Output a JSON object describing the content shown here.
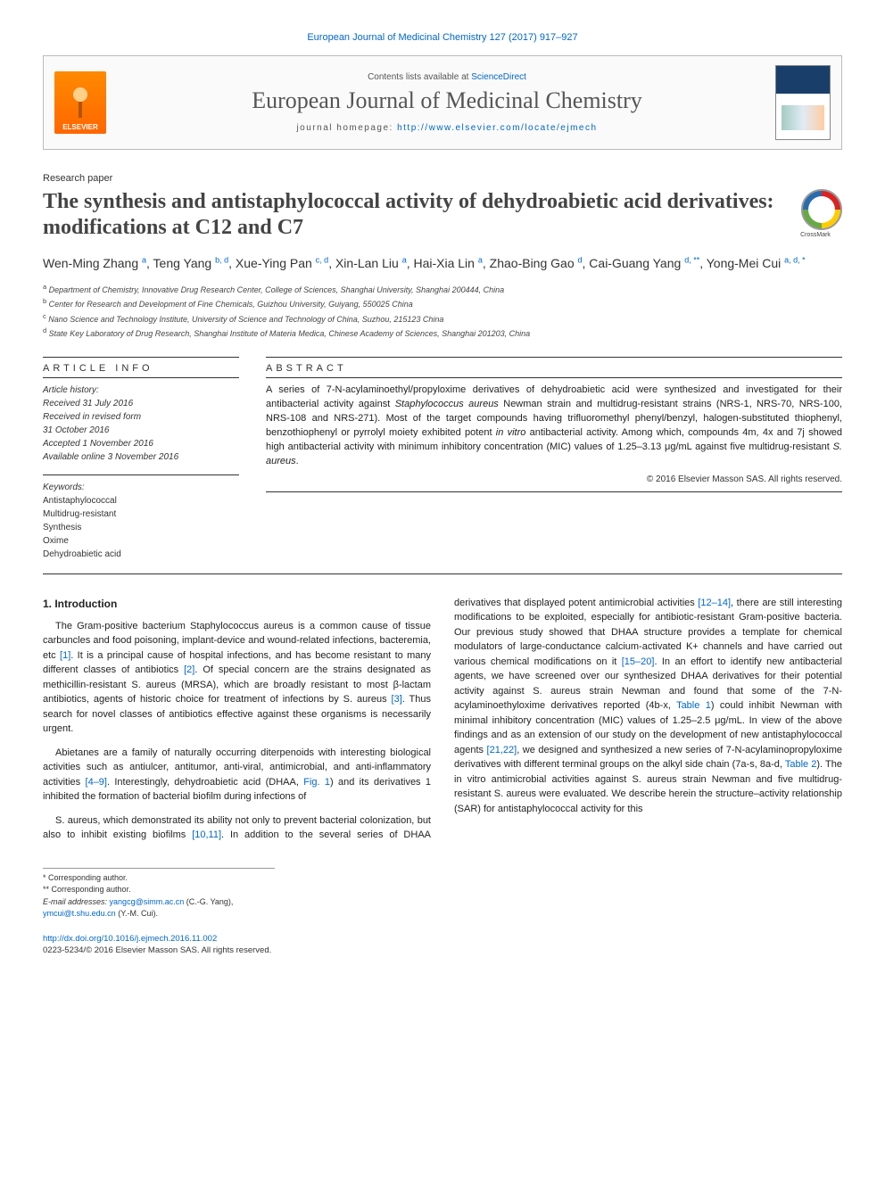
{
  "citation_line": "European Journal of Medicinal Chemistry 127 (2017) 917–927",
  "journal_card": {
    "publisher_name": "ELSEVIER",
    "contents_prefix": "Contents lists available at ",
    "contents_link": "ScienceDirect",
    "journal_name": "European Journal of Medicinal Chemistry",
    "homepage_prefix": "journal homepage: ",
    "homepage_url": "http://www.elsevier.com/locate/ejmech"
  },
  "article_type": "Research paper",
  "title": "The synthesis and antistaphylococcal activity of dehydroabietic acid derivatives: modifications at C12 and C7",
  "crossmark_label": "CrossMark",
  "authors_html": "Wen-Ming Zhang <sup>a</sup>, Teng Yang <sup>b, d</sup>, Xue-Ying Pan <sup>c, d</sup>, Xin-Lan Liu <sup>a</sup>, Hai-Xia Lin <sup>a</sup>, Zhao-Bing Gao <sup>d</sup>, Cai-Guang Yang <sup>d, **</sup>, Yong-Mei Cui <sup>a, d, *</sup>",
  "affiliations": [
    {
      "sup": "a",
      "text": "Department of Chemistry, Innovative Drug Research Center, College of Sciences, Shanghai University, Shanghai 200444, China"
    },
    {
      "sup": "b",
      "text": "Center for Research and Development of Fine Chemicals, Guizhou University, Guiyang, 550025 China"
    },
    {
      "sup": "c",
      "text": "Nano Science and Technology Institute, University of Science and Technology of China, Suzhou, 215123 China"
    },
    {
      "sup": "d",
      "text": "State Key Laboratory of Drug Research, Shanghai Institute of Materia Medica, Chinese Academy of Sciences, Shanghai 201203, China"
    }
  ],
  "article_info": {
    "heading": "ARTICLE INFO",
    "history_label": "Article history:",
    "history": [
      "Received 31 July 2016",
      "Received in revised form",
      "31 October 2016",
      "Accepted 1 November 2016",
      "Available online 3 November 2016"
    ],
    "keywords_label": "Keywords:",
    "keywords": [
      "Antistaphylococcal",
      "Multidrug-resistant",
      "Synthesis",
      "Oxime",
      "Dehydroabietic acid"
    ]
  },
  "abstract": {
    "heading": "ABSTRACT",
    "text": "A series of 7-N-acylaminoethyl/propyloxime derivatives of dehydroabietic acid were synthesized and investigated for their antibacterial activity against Staphylococcus aureus Newman strain and multidrug-resistant strains (NRS-1, NRS-70, NRS-100, NRS-108 and NRS-271). Most of the target compounds having trifluoromethyl phenyl/benzyl, halogen-substituted thiophenyl, benzothiophenyl or pyrrolyl moiety exhibited potent in vitro antibacterial activity. Among which, compounds 4m, 4x and 7j showed high antibacterial activity with minimum inhibitory concentration (MIC) values of 1.25–3.13 μg/mL against five multidrug-resistant S. aureus.",
    "copyright": "© 2016 Elsevier Masson SAS. All rights reserved."
  },
  "body": {
    "section_heading": "1. Introduction",
    "p1": "The Gram-positive bacterium Staphylococcus aureus is a common cause of tissue carbuncles and food poisoning, implant-device and wound-related infections, bacteremia, etc [1]. It is a principal cause of hospital infections, and has become resistant to many different classes of antibiotics [2]. Of special concern are the strains designated as methicillin-resistant S. aureus (MRSA), which are broadly resistant to most β-lactam antibiotics, agents of historic choice for treatment of infections by S. aureus [3]. Thus search for novel classes of antibiotics effective against these organisms is necessarily urgent.",
    "p2": "Abietanes are a family of naturally occurring diterpenoids with interesting biological activities such as antiulcer, antitumor, anti-viral, antimicrobial, and anti-inflammatory activities [4–9]. Interestingly, dehydroabietic acid (DHAA, Fig. 1) and its derivatives 1 inhibited the formation of bacterial biofilm during infections of",
    "p3": "S. aureus, which demonstrated its ability not only to prevent bacterial colonization, but also to inhibit existing biofilms [10,11]. In addition to the several series of DHAA derivatives that displayed potent antimicrobial activities [12–14], there are still interesting modifications to be exploited, especially for antibiotic-resistant Gram-positive bacteria. Our previous study showed that DHAA structure provides a template for chemical modulators of large-conductance calcium-activated K+ channels and have carried out various chemical modifications on it [15–20]. In an effort to identify new antibacterial agents, we have screened over our synthesized DHAA derivatives for their potential activity against S. aureus strain Newman and found that some of the 7-N-acylaminoethyloxime derivatives reported (4b-x, Table 1) could inhibit Newman with minimal inhibitory concentration (MIC) values of 1.25–2.5 μg/mL. In view of the above findings and as an extension of our study on the development of new antistaphylococcal agents [21,22], we designed and synthesized a new series of 7-N-acylaminopropyloxime derivatives with different terminal groups on the alkyl side chain (7a-s, 8a-d, Table 2). The in vitro antimicrobial activities against S. aureus strain Newman and five multidrug-resistant S. aureus were evaluated. We describe herein the structure–activity relationship (SAR) for antistaphylococcal activity for this"
  },
  "refs": {
    "r1": "[1]",
    "r2": "[2]",
    "r3": "[3]",
    "r4_9": "[4–9]",
    "fig1": "Fig. 1",
    "r10_11": "[10,11]",
    "r12_14": "[12–14]",
    "r15_20": "[15–20]",
    "tbl1": "Table 1",
    "r21_22": "[21,22]",
    "tbl2": "Table 2"
  },
  "footnotes": {
    "c1": "* Corresponding author.",
    "c2": "** Corresponding author.",
    "email_label": "E-mail addresses:",
    "email1": "yangcg@simm.ac.cn",
    "email1_who": "(C.-G. Yang),",
    "email2": "ymcui@t.shu.edu.cn",
    "email2_who": "(Y.-M. Cui)."
  },
  "doi": {
    "url": "http://dx.doi.org/10.1016/j.ejmech.2016.11.002",
    "issn_line": "0223-5234/© 2016 Elsevier Masson SAS. All rights reserved."
  },
  "colors": {
    "link": "#0066cc",
    "text": "#222222",
    "muted": "#555555",
    "rule": "#333333",
    "elsevier_orange": "#ff6600"
  }
}
